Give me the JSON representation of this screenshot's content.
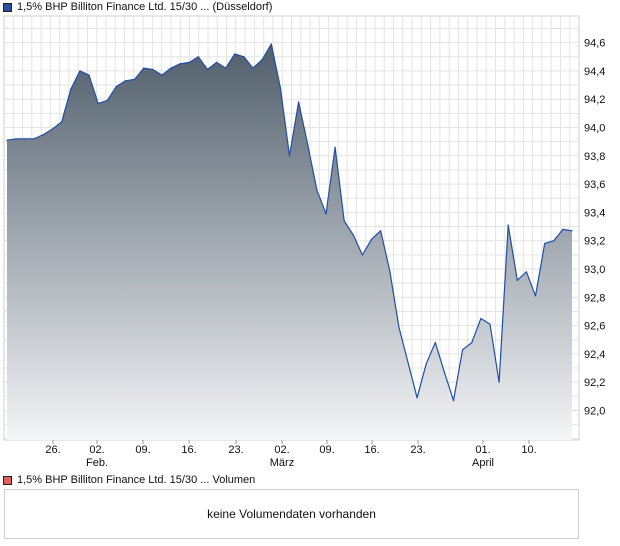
{
  "legend": {
    "price_label": "1,5% BHP Billiton Finance Ltd. 15/30 ... (Düsseldorf)",
    "price_color": "#2a4fa0",
    "volume_label": "1,5% BHP Billiton Finance Ltd. 15/30 ... Volumen",
    "volume_color": "#e06060"
  },
  "volume": {
    "message": "keine Volumendaten vorhanden"
  },
  "chart_data": {
    "type": "area",
    "line_color": "#1f4ea8",
    "fill_top_color": "#505e6b",
    "fill_bottom_color": "#f4f5f7",
    "y_ticks": [
      "92,0",
      "92,2",
      "92,4",
      "92,6",
      "92,8",
      "93,0",
      "93,2",
      "93,4",
      "93,6",
      "93,8",
      "94,0",
      "94,2",
      "94,4",
      "94,6"
    ],
    "ylim": [
      91.8,
      94.7
    ],
    "x_tick_labels": [
      "26.",
      "02.",
      "09.",
      "16.",
      "23.",
      "02.",
      "09.",
      "16.",
      "23.",
      "01.",
      "10."
    ],
    "month_labels": [
      "Feb.",
      "März",
      "April"
    ],
    "grid": true,
    "series": [
      {
        "values": [
          93.91,
          93.92,
          93.92,
          93.92,
          93.95,
          93.99,
          94.04,
          94.27,
          94.4,
          94.37,
          94.17,
          94.19,
          94.29,
          94.33,
          94.34,
          94.42,
          94.41,
          94.37,
          94.42,
          94.45,
          94.46,
          94.5,
          94.41,
          94.46,
          94.42,
          94.52,
          94.5,
          94.42,
          94.48,
          94.59,
          94.28,
          93.8,
          94.18,
          93.88,
          93.56,
          93.39,
          93.86,
          93.34,
          93.24,
          93.1,
          93.21,
          93.27,
          92.99,
          92.59,
          92.34,
          92.09,
          92.33,
          92.48,
          92.27,
          92.07,
          92.43,
          92.48,
          92.65,
          92.61,
          92.2,
          93.31,
          92.92,
          92.98,
          92.81,
          93.18,
          93.2,
          93.28,
          93.27
        ]
      }
    ]
  }
}
